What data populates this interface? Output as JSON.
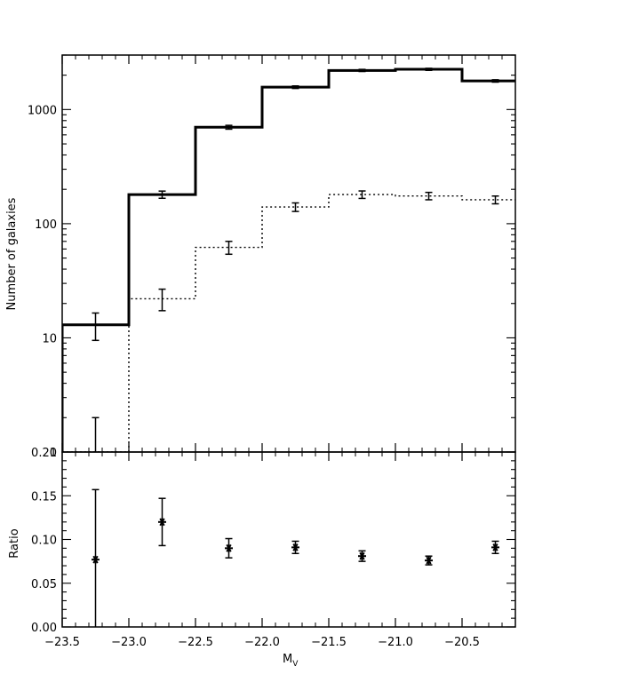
{
  "chart_data": [
    {
      "type": "line",
      "panel": "top",
      "ylabel": "Number of galaxies",
      "xlabel": "",
      "xlim": [
        -23.5,
        -20.1
      ],
      "ylim": [
        1,
        3000
      ],
      "yscale": "log",
      "yticks": [
        1,
        10,
        100,
        1000
      ],
      "ytick_labels": [
        "1",
        "10",
        "100",
        "1000"
      ],
      "bin_edges": [
        -23.5,
        -23.0,
        -22.5,
        -22.0,
        -21.5,
        -21.0,
        -20.5,
        -20.1
      ],
      "series": [
        {
          "style": "solid-step",
          "bin_centers": [
            -23.25,
            -22.75,
            -22.25,
            -21.75,
            -21.25,
            -20.75,
            -20.25
          ],
          "values": [
            13,
            180,
            700,
            1570,
            2200,
            2250,
            1780
          ],
          "err": [
            3.5,
            13,
            27,
            40,
            47,
            47,
            42
          ]
        },
        {
          "style": "dotted-step",
          "bin_centers": [
            -23.25,
            -22.75,
            -22.25,
            -21.75,
            -21.25,
            -20.75,
            -20.25
          ],
          "values": [
            1,
            22,
            62,
            140,
            180,
            175,
            162
          ],
          "err": [
            1,
            4.7,
            8,
            12,
            13.5,
            13,
            12.7
          ]
        }
      ],
      "grid": false
    },
    {
      "type": "scatter",
      "panel": "bottom",
      "xlabel": "M_V",
      "xlabel_main": "M",
      "xlabel_sub": "V",
      "ylabel": "Ratio",
      "xlim": [
        -23.5,
        -20.1
      ],
      "ylim": [
        0.0,
        0.2
      ],
      "xticks": [
        -23.5,
        -23.0,
        -22.5,
        -22.0,
        -21.5,
        -21.0,
        -20.5
      ],
      "xtick_labels": [
        "−23.5",
        "−23.0",
        "−22.5",
        "−22.0",
        "−21.5",
        "−21.0",
        "−20.5"
      ],
      "yticks": [
        0.0,
        0.05,
        0.1,
        0.15,
        0.2
      ],
      "ytick_labels": [
        "0.00",
        "0.05",
        "0.10",
        "0.15",
        "0.20"
      ],
      "x": [
        -23.25,
        -22.75,
        -22.25,
        -21.75,
        -21.25,
        -20.75,
        -20.25
      ],
      "y": [
        0.077,
        0.12,
        0.09,
        0.091,
        0.081,
        0.076,
        0.091
      ],
      "err": [
        0.08,
        0.027,
        0.011,
        0.007,
        0.006,
        0.005,
        0.007
      ],
      "marker": "asterisk",
      "grid": false
    }
  ]
}
